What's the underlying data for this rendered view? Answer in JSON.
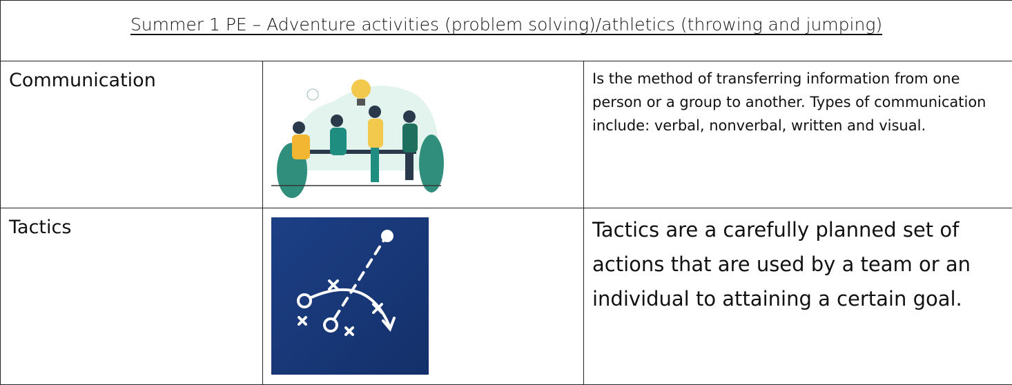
{
  "header": {
    "title": "Summer 1 PE – Adventure activities (problem solving)/athletics (throwing and jumping)"
  },
  "table": {
    "rows": [
      {
        "term": "Communication",
        "definition": "Is the method of transferring information from one person or a group to another. Types of communication include: verbal, nonverbal, written and visual."
      },
      {
        "term": "Tactics",
        "definition": "Tactics are a carefully planned set of actions that are used by a team or an individual to attaining a certain goal."
      }
    ]
  }
}
